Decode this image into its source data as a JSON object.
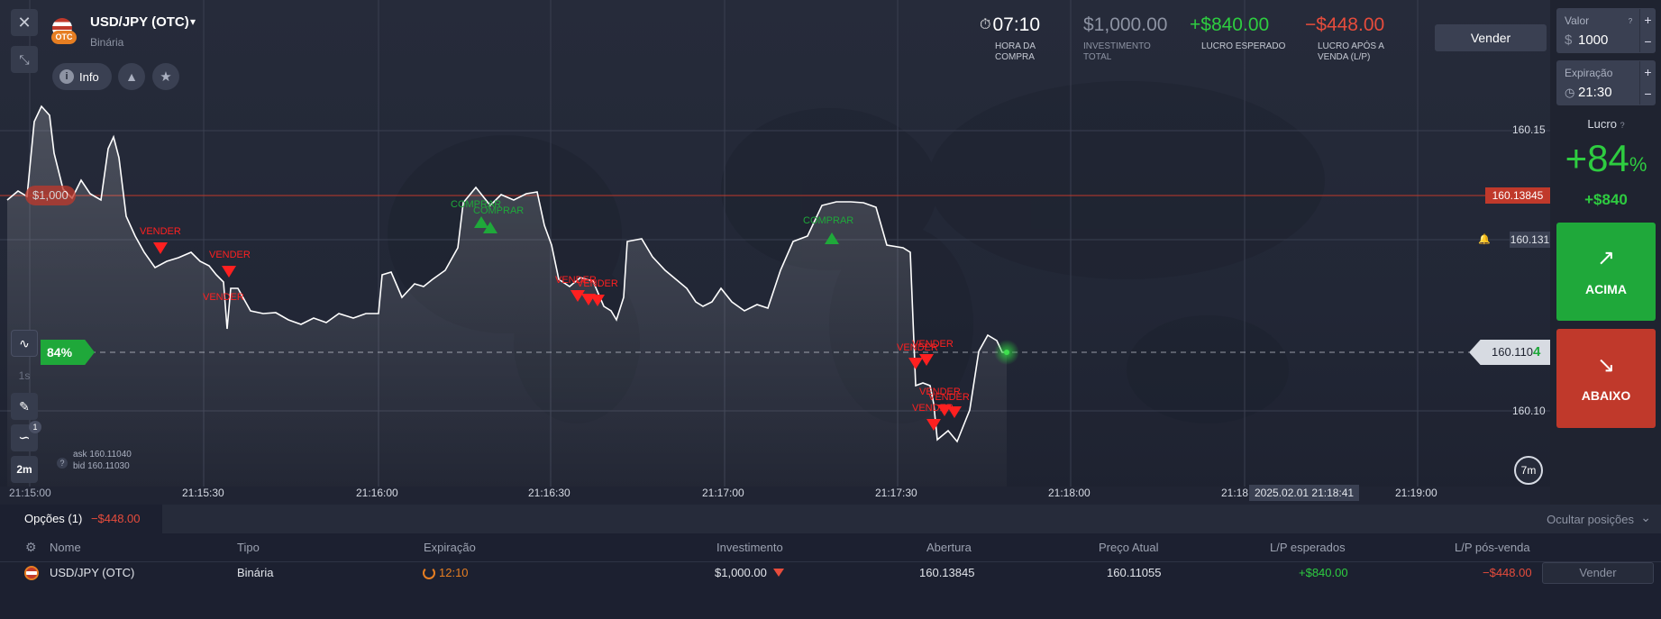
{
  "header": {
    "asset": "USD/JPY (OTC)",
    "asset_type": "Binária",
    "flag_badge": "OTC",
    "info_label": "Info",
    "purchase_time": "07:10",
    "purchase_time_label": "HORA DA COMPRA",
    "total_investment": "$1,000.00",
    "total_investment_label": "INVESTIMENTO TOTAL",
    "expected_profit": "+$840.00",
    "expected_profit_label": "LUCRO ESPERADO",
    "sell_profit": "−$448.00",
    "sell_profit_label": "LUCRO APÓS A VENDA (L/P)",
    "sell_button": "Vender"
  },
  "side_panel": {
    "value_label": "Valor",
    "value_currency": "$",
    "value": "1000",
    "expiration_label": "Expiração",
    "expiration": "21:30",
    "profit_label": "Lucro",
    "profit_percent": "+84",
    "profit_percent_sign": "%",
    "profit_amount": "+$840",
    "up_button": "ACIMA",
    "down_button": "ABAIXO"
  },
  "chart": {
    "price_labels": [
      "160.15",
      "160.13845",
      "160.131",
      "160.1104",
      "160.10"
    ],
    "current_price_main": "160.110",
    "current_price_last": "4",
    "payout_badge": "84%",
    "trade_badge": "$1,000",
    "time_labels": [
      "21:15:00",
      "21:15:30",
      "21:16:00",
      "21:16:30",
      "21:17:00",
      "21:17:30",
      "21:18:00",
      "21:18",
      "21:19:00"
    ],
    "cursor_time": "2025.02.01 21:18:41",
    "ask": "ask 160.11040",
    "bid": "bid 160.11030",
    "timeframe": "2m",
    "interval": "1s",
    "indicator_count": "1",
    "expiry_countdown": "7m",
    "sell_marker": "VENDER",
    "buy_marker": "COMPRAR",
    "colors": {
      "line": "#ffffff",
      "sell": "#ff2020",
      "buy": "#1fa83a",
      "trade_line": "#c0392b",
      "up": "#1fa83a",
      "down": "#c0392b"
    }
  },
  "positions": {
    "tab_label": "Opções (1)",
    "tab_pl": "−$448.00",
    "hide_label": "Ocultar posições",
    "columns": [
      "Nome",
      "Tipo",
      "Expiração",
      "Investimento",
      "Abertura",
      "Preço Atual",
      "L/P esperados",
      "L/P pós-venda"
    ],
    "rows": [
      {
        "name": "USD/JPY (OTC)",
        "type": "Binária",
        "expiration": "12:10",
        "investment": "$1,000.00",
        "open": "160.13845",
        "current": "160.11055",
        "expected": "+$840.00",
        "after_sale": "−$448.00",
        "action": "Vender"
      }
    ]
  }
}
